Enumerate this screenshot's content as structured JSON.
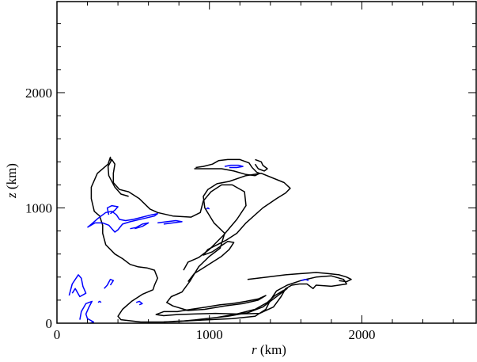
{
  "chart_data": {
    "type": "line",
    "title": "",
    "xlabel_var": "r",
    "xlabel_unit": " (km)",
    "ylabel_var": "z",
    "ylabel_unit": " (km)",
    "xlim": [
      0,
      2750
    ],
    "ylim": [
      0,
      2790
    ],
    "xticks": [
      0,
      1000,
      2000
    ],
    "yticks": [
      0,
      1000,
      2000
    ],
    "xminor_step": 200,
    "yminor_step": 200,
    "grid": false,
    "series": [
      {
        "color": "#000000",
        "points": [
          [
            355,
            1400
          ],
          [
            350,
            1440
          ],
          [
            335,
            1380
          ],
          [
            265,
            1300
          ],
          [
            225,
            1180
          ],
          [
            225,
            1080
          ],
          [
            245,
            970
          ],
          [
            280,
            930
          ],
          [
            300,
            850
          ],
          [
            300,
            780
          ],
          [
            320,
            680
          ],
          [
            380,
            600
          ],
          [
            430,
            560
          ],
          [
            480,
            510
          ],
          [
            530,
            490
          ],
          [
            590,
            480
          ],
          [
            640,
            460
          ],
          [
            660,
            390
          ],
          [
            640,
            330
          ],
          [
            630,
            290
          ],
          [
            560,
            250
          ],
          [
            490,
            190
          ],
          [
            430,
            120
          ],
          [
            400,
            60
          ],
          [
            420,
            30
          ],
          [
            550,
            10
          ],
          [
            700,
            10
          ],
          [
            850,
            20
          ],
          [
            1000,
            30
          ],
          [
            1150,
            40
          ],
          [
            1300,
            60
          ],
          [
            1370,
            120
          ],
          [
            1400,
            200
          ],
          [
            1440,
            280
          ],
          [
            1510,
            330
          ],
          [
            1600,
            370
          ],
          [
            1700,
            400
          ],
          [
            1800,
            410
          ],
          [
            1880,
            380
          ],
          [
            1900,
            340
          ],
          [
            1800,
            320
          ],
          [
            1700,
            330
          ],
          [
            1680,
            300
          ],
          [
            1640,
            340
          ],
          [
            1590,
            340
          ],
          [
            1540,
            330
          ],
          [
            1500,
            300
          ],
          [
            1470,
            230
          ],
          [
            1420,
            140
          ],
          [
            1330,
            85
          ],
          [
            1180,
            80
          ],
          [
            1040,
            85
          ],
          [
            900,
            80
          ],
          [
            790,
            75
          ],
          [
            700,
            65
          ],
          [
            650,
            75
          ],
          [
            700,
            100
          ],
          [
            790,
            100
          ],
          [
            880,
            120
          ],
          [
            980,
            140
          ],
          [
            1070,
            160
          ],
          [
            1150,
            170
          ],
          [
            1240,
            190
          ],
          [
            1320,
            210
          ],
          [
            1370,
            240
          ],
          [
            1320,
            200
          ],
          [
            1220,
            170
          ],
          [
            1100,
            150
          ],
          [
            970,
            120
          ],
          [
            860,
            110
          ],
          [
            760,
            150
          ],
          [
            720,
            180
          ],
          [
            750,
            230
          ],
          [
            820,
            270
          ],
          [
            870,
            360
          ],
          [
            930,
            490
          ],
          [
            1000,
            580
          ],
          [
            1070,
            650
          ],
          [
            1100,
            780
          ],
          [
            1030,
            870
          ],
          [
            970,
            1000
          ],
          [
            960,
            1100
          ],
          [
            990,
            1160
          ],
          [
            1050,
            1210
          ],
          [
            1130,
            1230
          ],
          [
            1240,
            1280
          ],
          [
            1340,
            1300
          ],
          [
            1490,
            1220
          ],
          [
            1530,
            1170
          ],
          [
            1500,
            1130
          ],
          [
            1440,
            1080
          ],
          [
            1350,
            1000
          ],
          [
            1240,
            870
          ],
          [
            1180,
            780
          ],
          [
            1110,
            720
          ],
          [
            990,
            640
          ],
          [
            960,
            590
          ],
          [
            1020,
            620
          ],
          [
            1120,
            710
          ],
          [
            1160,
            700
          ],
          [
            1130,
            640
          ],
          [
            1080,
            580
          ],
          [
            1020,
            530
          ],
          [
            960,
            480
          ],
          [
            900,
            430
          ],
          [
            860,
            360
          ]
        ]
      },
      {
        "color": "#000000",
        "points": [
          [
            470,
            1100
          ],
          [
            420,
            1120
          ],
          [
            380,
            1180
          ],
          [
            340,
            1280
          ],
          [
            335,
            1360
          ],
          [
            360,
            1420
          ],
          [
            380,
            1380
          ],
          [
            370,
            1300
          ],
          [
            370,
            1220
          ],
          [
            410,
            1160
          ],
          [
            470,
            1140
          ],
          [
            540,
            1080
          ],
          [
            610,
            990
          ],
          [
            660,
            960
          ],
          [
            760,
            930
          ],
          [
            880,
            920
          ],
          [
            940,
            960
          ],
          [
            960,
            1060
          ],
          [
            1010,
            1140
          ],
          [
            1080,
            1200
          ],
          [
            1150,
            1200
          ],
          [
            1230,
            1140
          ],
          [
            1240,
            1020
          ],
          [
            1180,
            900
          ],
          [
            1090,
            760
          ],
          [
            1000,
            640
          ],
          [
            930,
            570
          ],
          [
            860,
            530
          ],
          [
            830,
            460
          ]
        ]
      },
      {
        "color": "#000000",
        "points": [
          [
            910,
            1350
          ],
          [
            960,
            1360
          ],
          [
            1020,
            1380
          ],
          [
            1060,
            1410
          ],
          [
            1120,
            1420
          ],
          [
            1200,
            1420
          ],
          [
            1260,
            1390
          ],
          [
            1280,
            1350
          ],
          [
            1310,
            1310
          ],
          [
            1330,
            1300
          ],
          [
            1300,
            1280
          ],
          [
            1240,
            1290
          ],
          [
            1160,
            1320
          ],
          [
            1080,
            1340
          ],
          [
            1000,
            1340
          ],
          [
            940,
            1340
          ],
          [
            900,
            1340
          ]
        ]
      },
      {
        "color": "#000000",
        "points": [
          [
            1300,
            1420
          ],
          [
            1340,
            1400
          ],
          [
            1350,
            1370
          ],
          [
            1380,
            1340
          ],
          [
            1360,
            1320
          ],
          [
            1320,
            1340
          ],
          [
            1300,
            1380
          ]
        ]
      },
      {
        "color": "#000000",
        "points": [
          [
            700,
            10
          ],
          [
            800,
            15
          ],
          [
            920,
            30
          ],
          [
            1050,
            50
          ],
          [
            1180,
            80
          ],
          [
            1300,
            120
          ],
          [
            1380,
            180
          ],
          [
            1430,
            240
          ],
          [
            1480,
            280
          ],
          [
            1510,
            300
          ],
          [
            1480,
            270
          ],
          [
            1420,
            210
          ],
          [
            1350,
            140
          ],
          [
            1250,
            90
          ],
          [
            1120,
            60
          ],
          [
            980,
            40
          ],
          [
            850,
            20
          ],
          [
            760,
            15
          ]
        ]
      },
      {
        "color": "#000000",
        "points": [
          [
            1250,
            380
          ],
          [
            1380,
            400
          ],
          [
            1500,
            420
          ],
          [
            1600,
            430
          ],
          [
            1700,
            440
          ],
          [
            1780,
            430
          ],
          [
            1850,
            420
          ],
          [
            1900,
            400
          ],
          [
            1930,
            380
          ],
          [
            1900,
            360
          ],
          [
            1850,
            370
          ]
        ]
      },
      {
        "color": "#0000ff",
        "points": [
          [
            200,
            830
          ],
          [
            235,
            870
          ],
          [
            270,
            910
          ],
          [
            320,
            960
          ],
          [
            360,
            970
          ],
          [
            390,
            940
          ],
          [
            410,
            900
          ],
          [
            450,
            890
          ],
          [
            500,
            900
          ],
          [
            560,
            920
          ],
          [
            620,
            940
          ],
          [
            660,
            950
          ],
          [
            640,
            930
          ],
          [
            560,
            905
          ],
          [
            480,
            880
          ],
          [
            430,
            860
          ],
          [
            400,
            810
          ],
          [
            380,
            790
          ],
          [
            360,
            820
          ],
          [
            340,
            850
          ],
          [
            300,
            870
          ],
          [
            250,
            870
          ],
          [
            210,
            840
          ]
        ]
      },
      {
        "color": "#0000ff",
        "points": [
          [
            340,
            940
          ],
          [
            330,
            1000
          ],
          [
            360,
            1020
          ],
          [
            400,
            1010
          ],
          [
            380,
            980
          ],
          [
            350,
            950
          ]
        ]
      },
      {
        "color": "#0000ff",
        "points": [
          [
            480,
            820
          ],
          [
            520,
            830
          ],
          [
            560,
            860
          ],
          [
            600,
            870
          ],
          [
            560,
            840
          ],
          [
            510,
            820
          ]
        ]
      },
      {
        "color": "#0000ff",
        "points": [
          [
            660,
            870
          ],
          [
            720,
            880
          ],
          [
            780,
            890
          ],
          [
            820,
            880
          ],
          [
            760,
            870
          ],
          [
            700,
            860
          ]
        ]
      },
      {
        "color": "#0000ff",
        "points": [
          [
            1100,
            1360
          ],
          [
            1140,
            1370
          ],
          [
            1190,
            1370
          ],
          [
            1220,
            1360
          ],
          [
            1180,
            1350
          ],
          [
            1130,
            1350
          ]
        ]
      },
      {
        "color": "#0000ff",
        "points": [
          [
            80,
            240
          ],
          [
            100,
            340
          ],
          [
            140,
            420
          ],
          [
            160,
            390
          ],
          [
            170,
            320
          ],
          [
            190,
            260
          ],
          [
            150,
            230
          ],
          [
            120,
            300
          ],
          [
            100,
            260
          ]
        ]
      },
      {
        "color": "#0000ff",
        "points": [
          [
            150,
            30
          ],
          [
            160,
            100
          ],
          [
            190,
            170
          ],
          [
            230,
            190
          ],
          [
            210,
            140
          ],
          [
            190,
            80
          ],
          [
            200,
            40
          ],
          [
            240,
            10
          ],
          [
            220,
            0
          ]
        ]
      },
      {
        "color": "#0000ff",
        "points": [
          [
            310,
            300
          ],
          [
            330,
            330
          ],
          [
            350,
            380
          ],
          [
            370,
            370
          ],
          [
            350,
            330
          ]
        ]
      },
      {
        "color": "#0000ff",
        "points": [
          [
            520,
            180
          ],
          [
            540,
            190
          ],
          [
            560,
            170
          ],
          [
            540,
            160
          ]
        ]
      },
      {
        "color": "#0000ff",
        "points": [
          [
            1600,
            370
          ],
          [
            1630,
            380
          ],
          [
            1650,
            370
          ]
        ]
      },
      {
        "color": "#0000ff",
        "points": [
          [
            980,
            990
          ],
          [
            990,
            1000
          ],
          [
            1000,
            990
          ]
        ]
      },
      {
        "color": "#0000ff",
        "points": [
          [
            270,
            180
          ],
          [
            280,
            190
          ],
          [
            290,
            180
          ]
        ]
      }
    ]
  }
}
